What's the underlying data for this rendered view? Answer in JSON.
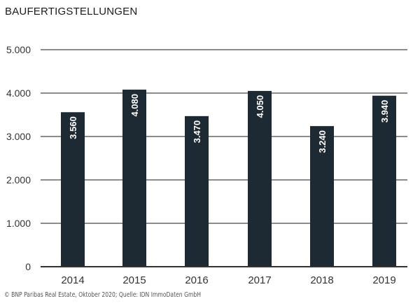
{
  "chart_data": {
    "type": "bar",
    "title": "BAUFERTIGSTELLUNGEN",
    "categories": [
      "2014",
      "2015",
      "2016",
      "2017",
      "2018",
      "2019"
    ],
    "values": [
      3560,
      4080,
      3470,
      4050,
      3240,
      3940
    ],
    "data_labels": [
      "3.560",
      "4.080",
      "3.470",
      "4.050",
      "3.240",
      "3.940"
    ],
    "ylim": [
      0,
      5000
    ],
    "yticks": [
      0,
      1000,
      2000,
      3000,
      4000,
      5000
    ],
    "ytick_labels": [
      "0",
      "1.000",
      "2.000",
      "3.000",
      "4.000",
      "5.000"
    ],
    "grid": true,
    "bar_color": "#1e2a33",
    "source": "© BNP Paribas Real Estate, Oktober 2020; Quelle: IDN ImmoDaten GmbH"
  }
}
